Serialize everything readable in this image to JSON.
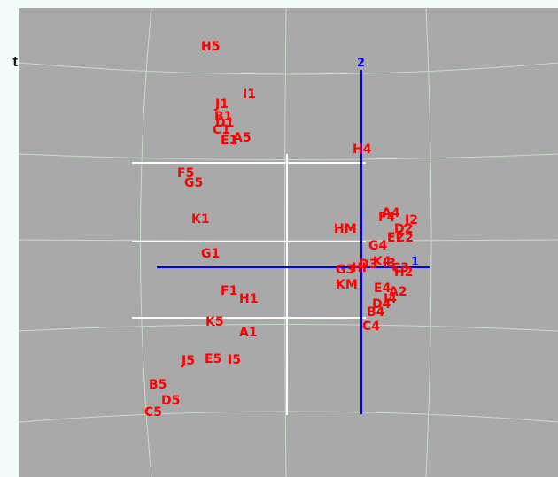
{
  "cut_off_text": "t",
  "colors": {
    "background": "#a9a9a9",
    "label": "#ff0000",
    "axis": "#0000ff",
    "grid": "#c8dcc8"
  },
  "axes": {
    "axis1_label": "1",
    "axis2_label": "2"
  },
  "points": [
    {
      "label": "H5"
    },
    {
      "label": "I1"
    },
    {
      "label": "J1"
    },
    {
      "label": "B1"
    },
    {
      "label": "D1"
    },
    {
      "label": "C1"
    },
    {
      "label": "E1"
    },
    {
      "label": "A5"
    },
    {
      "label": "H4"
    },
    {
      "label": "F5"
    },
    {
      "label": "G5"
    },
    {
      "label": "K1"
    },
    {
      "label": "A4"
    },
    {
      "label": "F4"
    },
    {
      "label": "J2"
    },
    {
      "label": "D2"
    },
    {
      "label": "E2"
    },
    {
      "label": "C2"
    },
    {
      "label": "HM"
    },
    {
      "label": "G4"
    },
    {
      "label": "G1"
    },
    {
      "label": "K4"
    },
    {
      "label": "I3"
    },
    {
      "label": "C3"
    },
    {
      "label": "H2"
    },
    {
      "label": "HI"
    },
    {
      "label": "D3"
    },
    {
      "label": "G3"
    },
    {
      "label": "KM"
    },
    {
      "label": "E4"
    },
    {
      "label": "A2"
    },
    {
      "label": "F1"
    },
    {
      "label": "H1"
    },
    {
      "label": "I4"
    },
    {
      "label": "D4"
    },
    {
      "label": "B4"
    },
    {
      "label": "K5"
    },
    {
      "label": "A1"
    },
    {
      "label": "C4"
    },
    {
      "label": "J5"
    },
    {
      "label": "E5"
    },
    {
      "label": "I5"
    },
    {
      "label": "B5"
    },
    {
      "label": "D5"
    },
    {
      "label": "C5"
    }
  ]
}
